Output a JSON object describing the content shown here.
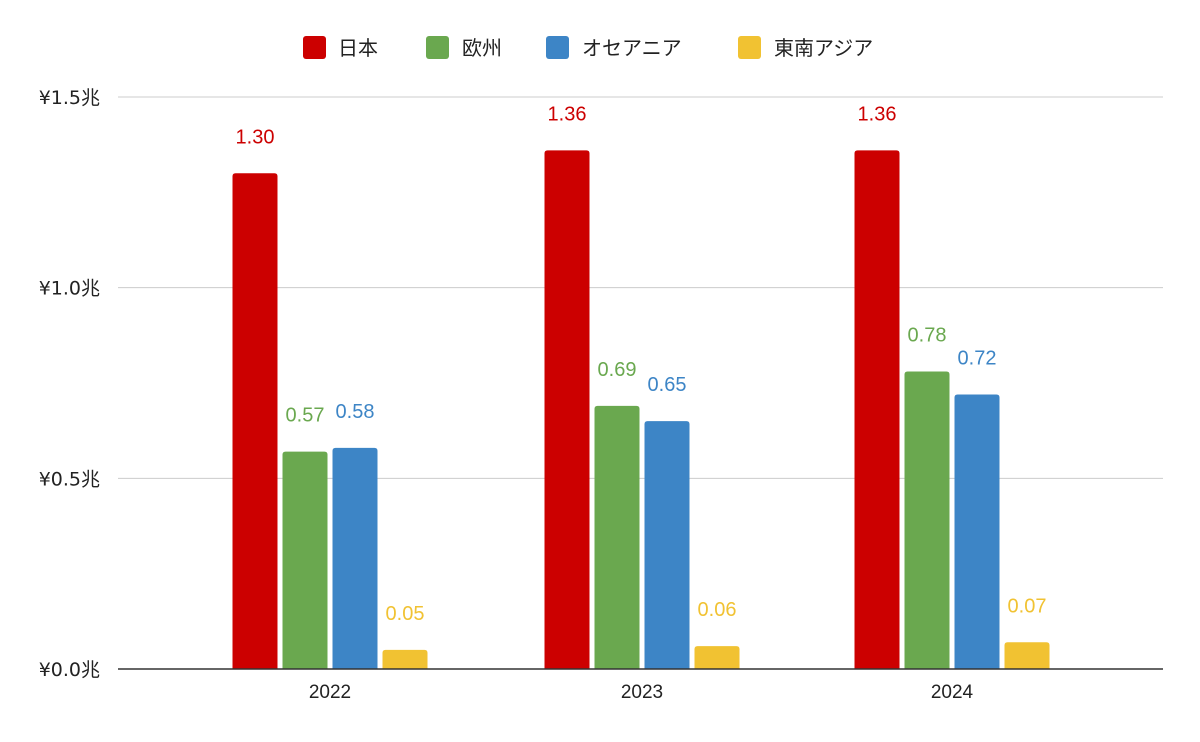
{
  "chart_data": {
    "type": "bar",
    "categories": [
      "2022",
      "2023",
      "2024"
    ],
    "series": [
      {
        "name": "日本",
        "values": [
          1.3,
          1.36,
          1.36
        ],
        "color": "#cc0000"
      },
      {
        "name": "欧州",
        "values": [
          0.57,
          0.69,
          0.78
        ],
        "color": "#6aa84f"
      },
      {
        "name": "オセアニア",
        "values": [
          0.58,
          0.65,
          0.72
        ],
        "color": "#3d85c6"
      },
      {
        "name": "東南アジア",
        "values": [
          0.05,
          0.06,
          0.07
        ],
        "color": "#f1c232"
      }
    ],
    "data_labels": [
      [
        "1.30",
        "1.36",
        "1.36"
      ],
      [
        "0.57",
        "0.69",
        "0.78"
      ],
      [
        "0.58",
        "0.65",
        "0.72"
      ],
      [
        "0.05",
        "0.06",
        "0.07"
      ]
    ],
    "y_ticks": [
      {
        "value": 0.0,
        "label": "¥0.0兆"
      },
      {
        "value": 0.5,
        "label": "¥0.5兆"
      },
      {
        "value": 1.0,
        "label": "¥1.0兆"
      },
      {
        "value": 1.5,
        "label": "¥1.5兆"
      }
    ],
    "ylim": [
      0,
      1.5
    ],
    "grid": true,
    "legend_position": "top-center",
    "title": "",
    "xlabel": "",
    "ylabel": ""
  }
}
